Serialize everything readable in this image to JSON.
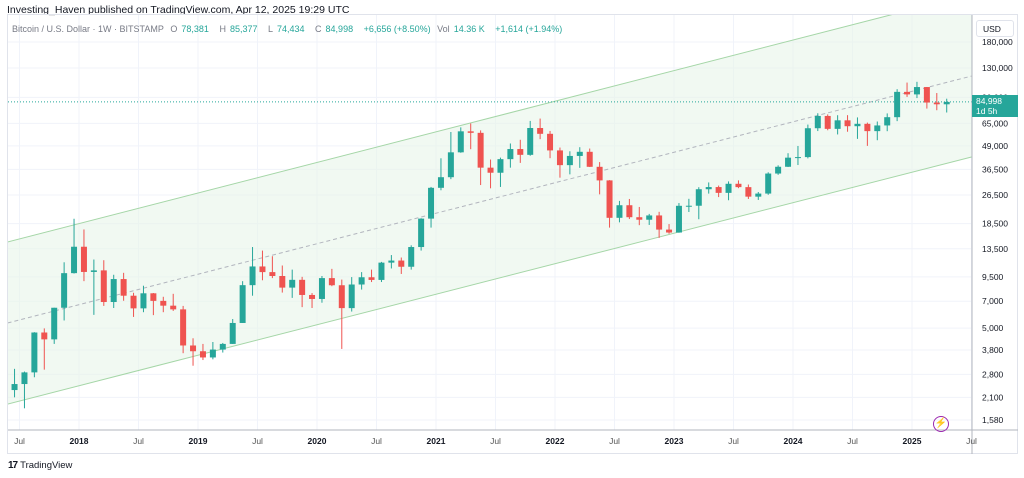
{
  "header": {
    "published": "Investing_Haven published on TradingView.com, Apr 12, 2025 19:29 UTC"
  },
  "legend": {
    "symbol": "Bitcoin / U.S. Dollar · 1W · BITSTAMP",
    "open_label": "O",
    "open": "78,381",
    "high_label": "H",
    "high": "85,377",
    "low_label": "L",
    "low": "74,434",
    "close_label": "C",
    "close": "84,998",
    "change": "+6,656 (+8.50%)",
    "vol_label": "Vol",
    "vol": "14.36 K",
    "vol_change": "+1,614 (+1.94%)"
  },
  "price_axis": {
    "currency": "USD",
    "last_price": "84,998",
    "countdown": "1d 5h"
  },
  "footer": {
    "brand": "TradingView",
    "logo": "17"
  },
  "colors": {
    "up": "#26a69a",
    "down": "#ef5350",
    "channel": "#a5d6a7",
    "channel_fill": "#e8f5e9",
    "midline": "#b2b5be",
    "last_price": "#26a69a"
  },
  "chart_data": {
    "type": "candlestick",
    "title": "Bitcoin / U.S. Dollar · 1W · BITSTAMP",
    "y_scale": "log",
    "ylim": [
      1400,
      200000
    ],
    "xlim": [
      "2017-05",
      "2025-08"
    ],
    "grid": true,
    "y_ticks": [
      "180,000",
      "130,000",
      "90,000",
      "65,000",
      "49,000",
      "36,500",
      "26,500",
      "18,500",
      "13,500",
      "9,500",
      "7,000",
      "5,000",
      "3,800",
      "2,800",
      "2,100",
      "1,580"
    ],
    "y_tick_values": [
      180000,
      130000,
      90000,
      65000,
      49000,
      36500,
      26500,
      18500,
      13500,
      9500,
      7000,
      5000,
      3800,
      2800,
      2100,
      1580
    ],
    "x_ticks": [
      "Jul",
      "2018",
      "Jul",
      "2019",
      "Jul",
      "2020",
      "Jul",
      "2021",
      "Jul",
      "2022",
      "Jul",
      "2023",
      "Jul",
      "2024",
      "Jul",
      "2025",
      "Jul"
    ],
    "x_tick_dates": [
      2017.5,
      2018,
      2018.5,
      2019,
      2019.5,
      2020,
      2020.5,
      2021,
      2021.5,
      2022,
      2022.5,
      2023,
      2023.5,
      2024,
      2024.5,
      2025,
      2025.5
    ],
    "channel": {
      "upper": [
        [
          2017.4,
          14700
        ],
        [
          2025.5,
          328000
        ]
      ],
      "middle": [
        [
          2017.4,
          5330
        ],
        [
          2025.5,
          117500
        ]
      ],
      "lower": [
        [
          2017.4,
          1930
        ],
        [
          2025.5,
          42650
        ]
      ]
    },
    "last_price": 84998,
    "candles": [
      [
        "2017-06",
        2300,
        3000,
        2100,
        2480
      ],
      [
        "2017-07",
        2480,
        2900,
        1830,
        2870
      ],
      [
        "2017-08",
        2870,
        4750,
        2700,
        4730
      ],
      [
        "2017-09",
        4730,
        4980,
        2970,
        4340
      ],
      [
        "2017-10",
        4340,
        6450,
        4100,
        6450
      ],
      [
        "2017-11",
        6450,
        11400,
        5500,
        9950
      ],
      [
        "2017-12",
        9950,
        19666,
        9900,
        13850
      ],
      [
        "2018-01",
        13850,
        17200,
        9000,
        10100
      ],
      [
        "2018-02",
        10100,
        11800,
        5900,
        10300
      ],
      [
        "2018-03",
        10300,
        11700,
        6600,
        6930
      ],
      [
        "2018-04",
        6930,
        9750,
        6430,
        9240
      ],
      [
        "2018-05",
        9240,
        9990,
        7040,
        7500
      ],
      [
        "2018-06",
        7500,
        7780,
        5750,
        6400
      ],
      [
        "2018-07",
        6400,
        8500,
        6100,
        7730
      ],
      [
        "2018-08",
        7730,
        7760,
        5880,
        7030
      ],
      [
        "2018-09",
        7030,
        7400,
        6100,
        6620
      ],
      [
        "2018-10",
        6620,
        7680,
        6200,
        6320
      ],
      [
        "2018-11",
        6320,
        6600,
        3650,
        4020
      ],
      [
        "2018-12",
        4020,
        4400,
        3120,
        3740
      ],
      [
        "2019-01",
        3740,
        4100,
        3350,
        3460
      ],
      [
        "2019-02",
        3460,
        4200,
        3380,
        3820
      ],
      [
        "2019-03",
        3820,
        4150,
        3680,
        4100
      ],
      [
        "2019-04",
        4100,
        5600,
        4100,
        5330
      ],
      [
        "2019-05",
        5330,
        9000,
        5330,
        8560
      ],
      [
        "2019-06",
        8560,
        13800,
        7500,
        10820
      ],
      [
        "2019-07",
        10820,
        13200,
        9100,
        10080
      ],
      [
        "2019-08",
        10080,
        12300,
        9350,
        9600
      ],
      [
        "2019-09",
        9600,
        10950,
        7800,
        8300
      ],
      [
        "2019-10",
        8300,
        10400,
        7300,
        9150
      ],
      [
        "2019-11",
        9150,
        9500,
        6500,
        7570
      ],
      [
        "2019-12",
        7570,
        7750,
        6430,
        7200
      ],
      [
        "2020-01",
        7200,
        9600,
        6870,
        9350
      ],
      [
        "2020-02",
        9350,
        10500,
        8450,
        8550
      ],
      [
        "2020-03",
        8550,
        9180,
        3850,
        6420
      ],
      [
        "2020-04",
        6420,
        9470,
        6150,
        8630
      ],
      [
        "2020-05",
        8630,
        10080,
        8100,
        9450
      ],
      [
        "2020-06",
        9450,
        10400,
        8900,
        9140
      ],
      [
        "2020-07",
        9140,
        11450,
        8900,
        11350
      ],
      [
        "2020-08",
        11350,
        12480,
        10550,
        11650
      ],
      [
        "2020-09",
        11650,
        12100,
        9850,
        10780
      ],
      [
        "2020-10",
        10780,
        14100,
        10400,
        13800
      ],
      [
        "2020-11",
        13800,
        19800,
        13200,
        19700
      ],
      [
        "2020-12",
        19700,
        29300,
        17600,
        28980
      ],
      [
        "2021-01",
        28980,
        41950,
        28100,
        33100
      ],
      [
        "2021-02",
        33100,
        58300,
        32300,
        45200
      ],
      [
        "2021-03",
        45200,
        61800,
        44950,
        58800
      ],
      [
        "2021-04",
        58800,
        64900,
        47000,
        57700
      ],
      [
        "2021-05",
        57700,
        59500,
        30000,
        37300
      ],
      [
        "2021-06",
        37300,
        41300,
        28800,
        35000
      ],
      [
        "2021-07",
        35000,
        42300,
        29300,
        41500
      ],
      [
        "2021-08",
        41500,
        50500,
        37300,
        47100
      ],
      [
        "2021-09",
        47100,
        52900,
        39600,
        43800
      ],
      [
        "2021-10",
        43800,
        67000,
        43300,
        61300
      ],
      [
        "2021-11",
        61300,
        69000,
        53300,
        57000
      ],
      [
        "2021-12",
        57000,
        59100,
        42000,
        46300
      ],
      [
        "2022-01",
        46300,
        48000,
        32900,
        38500
      ],
      [
        "2022-02",
        38500,
        45800,
        34300,
        43200
      ],
      [
        "2022-03",
        43200,
        48200,
        37200,
        45500
      ],
      [
        "2022-04",
        45500,
        47400,
        37600,
        37700
      ],
      [
        "2022-05",
        37700,
        40000,
        26700,
        31800
      ],
      [
        "2022-06",
        31800,
        31900,
        17600,
        19900
      ],
      [
        "2022-07",
        19900,
        24600,
        18800,
        23300
      ],
      [
        "2022-08",
        23300,
        25200,
        19600,
        20050
      ],
      [
        "2022-09",
        20050,
        22800,
        18150,
        19430
      ],
      [
        "2022-10",
        19430,
        20900,
        18200,
        20500
      ],
      [
        "2022-11",
        20500,
        21450,
        15480,
        17170
      ],
      [
        "2022-12",
        17170,
        18400,
        16300,
        16550
      ],
      [
        "2023-01",
        16550,
        23950,
        16500,
        23130
      ],
      [
        "2023-02",
        23130,
        25250,
        21400,
        23150
      ],
      [
        "2023-03",
        23150,
        29200,
        19550,
        28470
      ],
      [
        "2023-04",
        28470,
        31000,
        26950,
        29250
      ],
      [
        "2023-05",
        29250,
        29800,
        25800,
        27200
      ],
      [
        "2023-06",
        27200,
        31400,
        24800,
        30480
      ],
      [
        "2023-07",
        30480,
        31800,
        28850,
        29230
      ],
      [
        "2023-08",
        29230,
        30200,
        25200,
        25940
      ],
      [
        "2023-09",
        25940,
        27500,
        24900,
        26960
      ],
      [
        "2023-10",
        26960,
        35200,
        26550,
        34650
      ],
      [
        "2023-11",
        34650,
        38400,
        34100,
        37720
      ],
      [
        "2023-12",
        37720,
        44700,
        37600,
        42280
      ],
      [
        "2024-01",
        42280,
        48950,
        38550,
        42580
      ],
      [
        "2024-02",
        42580,
        64000,
        41900,
        61130
      ],
      [
        "2024-03",
        61130,
        73750,
        59000,
        71300
      ],
      [
        "2024-04",
        71300,
        72700,
        59600,
        60650
      ],
      [
        "2024-05",
        60650,
        71950,
        56550,
        67500
      ],
      [
        "2024-06",
        67500,
        72000,
        58500,
        62700
      ],
      [
        "2024-07",
        62700,
        70000,
        53500,
        64600
      ],
      [
        "2024-08",
        64600,
        65600,
        49000,
        58950
      ],
      [
        "2024-09",
        58950,
        66500,
        52600,
        63300
      ],
      [
        "2024-10",
        63300,
        73600,
        58900,
        70200
      ],
      [
        "2024-11",
        70200,
        99700,
        66800,
        96400
      ],
      [
        "2024-12",
        96400,
        108300,
        90500,
        93400
      ],
      [
        "2025-01",
        93400,
        109350,
        89200,
        102400
      ],
      [
        "2025-02",
        102400,
        102500,
        78200,
        84350
      ],
      [
        "2025-03",
        84350,
        95000,
        76600,
        82500
      ],
      [
        "2025-04",
        82500,
        88500,
        74434,
        84998
      ]
    ]
  }
}
